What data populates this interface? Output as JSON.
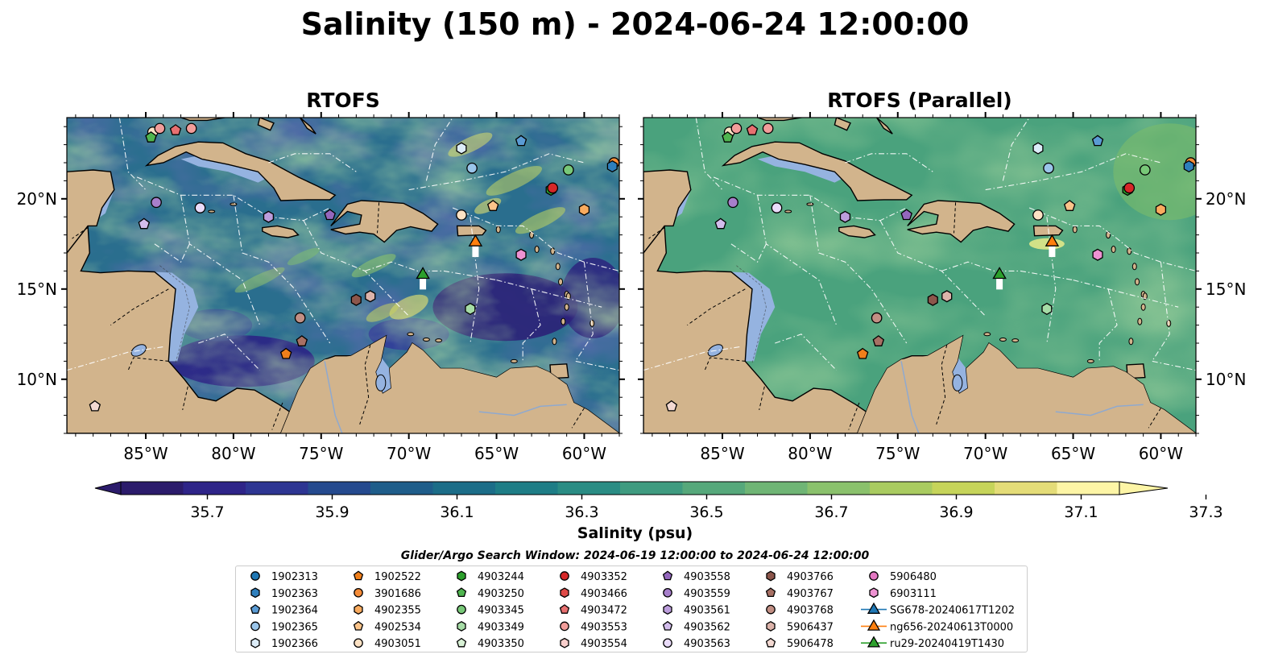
{
  "suptitle": "Salinity (150 m) - 2024-06-24 12:00:00",
  "maps": [
    {
      "title": "RTOFS",
      "variant": "main"
    },
    {
      "title": "RTOFS (Parallel)",
      "variant": "parallel"
    }
  ],
  "extent": {
    "lon": [
      -89.5,
      -58.0
    ],
    "lat": [
      7.0,
      24.5
    ]
  },
  "lon_ticks": [
    {
      "value": -85,
      "label": "85°W"
    },
    {
      "value": -80,
      "label": "80°W"
    },
    {
      "value": -75,
      "label": "75°W"
    },
    {
      "value": -70,
      "label": "70°W"
    },
    {
      "value": -65,
      "label": "65°W"
    },
    {
      "value": -60,
      "label": "60°W"
    }
  ],
  "lat_ticks": [
    {
      "value": 20,
      "label": "20°N"
    },
    {
      "value": 15,
      "label": "15°N"
    },
    {
      "value": 10,
      "label": "10°N"
    }
  ],
  "colorbar": {
    "label": "Salinity (psu)",
    "ticks": [
      "35.7",
      "35.9",
      "36.1",
      "36.3",
      "36.5",
      "36.7",
      "36.9",
      "37.1",
      "37.3"
    ],
    "colors": [
      "#2b1b6b",
      "#2e2488",
      "#2d3592",
      "#254a8e",
      "#1f5d8a",
      "#1c6d88",
      "#1e7d86",
      "#2a8c84",
      "#3f9b80",
      "#56a87b",
      "#6fb575",
      "#8ac16c",
      "#a9cb60",
      "#c6d45a",
      "#e4dc78",
      "#fdf5a6"
    ]
  },
  "legend": {
    "title": "Glider/Argo Search Window: 2024-06-19 12:00:00 to 2024-06-24 12:00:00",
    "entries": [
      {
        "label": "1902313",
        "color": "#1f77b4",
        "marker": "circle"
      },
      {
        "label": "1902363",
        "color": "#2e7fbd",
        "marker": "hexagon"
      },
      {
        "label": "1902364",
        "color": "#5a9bd4",
        "marker": "pentagon"
      },
      {
        "label": "1902365",
        "color": "#9ac5ea",
        "marker": "circle"
      },
      {
        "label": "1902366",
        "color": "#dcecf8",
        "marker": "hexagon"
      },
      {
        "label": "1902522",
        "color": "#f07f1b",
        "marker": "pentagon"
      },
      {
        "label": "3901686",
        "color": "#f58c38",
        "marker": "circle"
      },
      {
        "label": "4902355",
        "color": "#f9ab5f",
        "marker": "hexagon"
      },
      {
        "label": "4902534",
        "color": "#fbc48a",
        "marker": "pentagon"
      },
      {
        "label": "4903051",
        "color": "#fde2c4",
        "marker": "circle"
      },
      {
        "label": "4903244",
        "color": "#2ca02c",
        "marker": "hexagon"
      },
      {
        "label": "4903250",
        "color": "#4fb54f",
        "marker": "pentagon"
      },
      {
        "label": "4903345",
        "color": "#78c878",
        "marker": "circle"
      },
      {
        "label": "4903349",
        "color": "#a6dca6",
        "marker": "hexagon"
      },
      {
        "label": "4903350",
        "color": "#d8f1d5",
        "marker": "pentagon"
      },
      {
        "label": "4903352",
        "color": "#d62728",
        "marker": "circle"
      },
      {
        "label": "4903466",
        "color": "#df4a47",
        "marker": "hexagon"
      },
      {
        "label": "4903472",
        "color": "#e87070",
        "marker": "pentagon"
      },
      {
        "label": "4903553",
        "color": "#f19d9a",
        "marker": "circle"
      },
      {
        "label": "4903554",
        "color": "#f9cfcc",
        "marker": "hexagon"
      },
      {
        "label": "4903558",
        "color": "#9467bd",
        "marker": "pentagon"
      },
      {
        "label": "4903559",
        "color": "#a77fcb",
        "marker": "circle"
      },
      {
        "label": "4903561",
        "color": "#bc9ddc",
        "marker": "hexagon"
      },
      {
        "label": "4903562",
        "color": "#d3bdec",
        "marker": "pentagon"
      },
      {
        "label": "4903563",
        "color": "#eadcfa",
        "marker": "circle"
      },
      {
        "label": "4903766",
        "color": "#8c564b",
        "marker": "hexagon"
      },
      {
        "label": "4903767",
        "color": "#a77064",
        "marker": "pentagon"
      },
      {
        "label": "4903768",
        "color": "#c28f84",
        "marker": "circle"
      },
      {
        "label": "5906437",
        "color": "#dcb3aa",
        "marker": "hexagon"
      },
      {
        "label": "5906478",
        "color": "#f3d9d2",
        "marker": "pentagon"
      },
      {
        "label": "5906480",
        "color": "#e377c2",
        "marker": "circle"
      },
      {
        "label": "6903111",
        "color": "#ee92d2",
        "marker": "hexagon"
      },
      {
        "label": "SG678-20240617T1202",
        "color": "#1f77b4",
        "marker": "triangle"
      },
      {
        "label": "ng656-20240613T0000",
        "color": "#ff7f0e",
        "marker": "triangle"
      },
      {
        "label": "ru29-20240419T1430",
        "color": "#2ca02c",
        "marker": "triangle"
      }
    ]
  },
  "floats": [
    {
      "lon": -84.6,
      "lat": 23.7,
      "color": "#fde2c4",
      "marker": "circle"
    },
    {
      "lon": -84.7,
      "lat": 23.4,
      "color": "#4fb54f",
      "marker": "pentagon"
    },
    {
      "lon": -84.2,
      "lat": 23.9,
      "color": "#f19d9a",
      "marker": "circle"
    },
    {
      "lon": -83.3,
      "lat": 23.8,
      "color": "#e87070",
      "marker": "pentagon"
    },
    {
      "lon": -82.4,
      "lat": 23.9,
      "color": "#f19d9a",
      "marker": "circle"
    },
    {
      "lon": -84.4,
      "lat": 19.8,
      "color": "#a77fcb",
      "marker": "circle"
    },
    {
      "lon": -81.9,
      "lat": 19.5,
      "color": "#eadcfa",
      "marker": "circle"
    },
    {
      "lon": -85.1,
      "lat": 18.6,
      "color": "#d3bdec",
      "marker": "pentagon"
    },
    {
      "lon": -78.0,
      "lat": 19.0,
      "color": "#bc9ddc",
      "marker": "hexagon"
    },
    {
      "lon": -74.5,
      "lat": 19.1,
      "color": "#9467bd",
      "marker": "pentagon"
    },
    {
      "lon": -67.0,
      "lat": 22.8,
      "color": "#dcecf8",
      "marker": "hexagon"
    },
    {
      "lon": -66.4,
      "lat": 21.7,
      "color": "#9ac5ea",
      "marker": "circle"
    },
    {
      "lon": -63.6,
      "lat": 23.2,
      "color": "#5a9bd4",
      "marker": "pentagon"
    },
    {
      "lon": -61.9,
      "lat": 20.5,
      "color": "#2ca02c",
      "marker": "hexagon"
    },
    {
      "lon": -61.8,
      "lat": 20.6,
      "color": "#d62728",
      "marker": "circle"
    },
    {
      "lon": -60.9,
      "lat": 21.6,
      "color": "#78c878",
      "marker": "circle"
    },
    {
      "lon": -58.3,
      "lat": 22.0,
      "color": "#f58c38",
      "marker": "circle"
    },
    {
      "lon": -58.4,
      "lat": 21.8,
      "color": "#2e7fbd",
      "marker": "hexagon"
    },
    {
      "lon": -67.0,
      "lat": 19.1,
      "color": "#fde2c4",
      "marker": "circle"
    },
    {
      "lon": -65.2,
      "lat": 19.6,
      "color": "#fbc48a",
      "marker": "pentagon"
    },
    {
      "lon": -60.0,
      "lat": 19.4,
      "color": "#f9ab5f",
      "marker": "hexagon"
    },
    {
      "lon": -63.6,
      "lat": 16.9,
      "color": "#ee92d2",
      "marker": "hexagon"
    },
    {
      "lon": -73.0,
      "lat": 14.4,
      "color": "#8c564b",
      "marker": "hexagon"
    },
    {
      "lon": -72.2,
      "lat": 14.6,
      "color": "#dcb3aa",
      "marker": "hexagon"
    },
    {
      "lon": -76.2,
      "lat": 13.4,
      "color": "#c28f84",
      "marker": "circle"
    },
    {
      "lon": -76.1,
      "lat": 12.1,
      "color": "#a77064",
      "marker": "pentagon"
    },
    {
      "lon": -77.0,
      "lat": 11.4,
      "color": "#f07f1b",
      "marker": "pentagon"
    },
    {
      "lon": -66.5,
      "lat": 13.9,
      "color": "#a6dca6",
      "marker": "hexagon"
    },
    {
      "lon": -87.9,
      "lat": 8.5,
      "color": "#f3d9d2",
      "marker": "pentagon"
    }
  ],
  "gliders": [
    {
      "lon": -66.2,
      "lat": 17.4,
      "color": "#ff7f0e"
    },
    {
      "lon": -69.2,
      "lat": 15.6,
      "color": "#2ca02c"
    }
  ]
}
